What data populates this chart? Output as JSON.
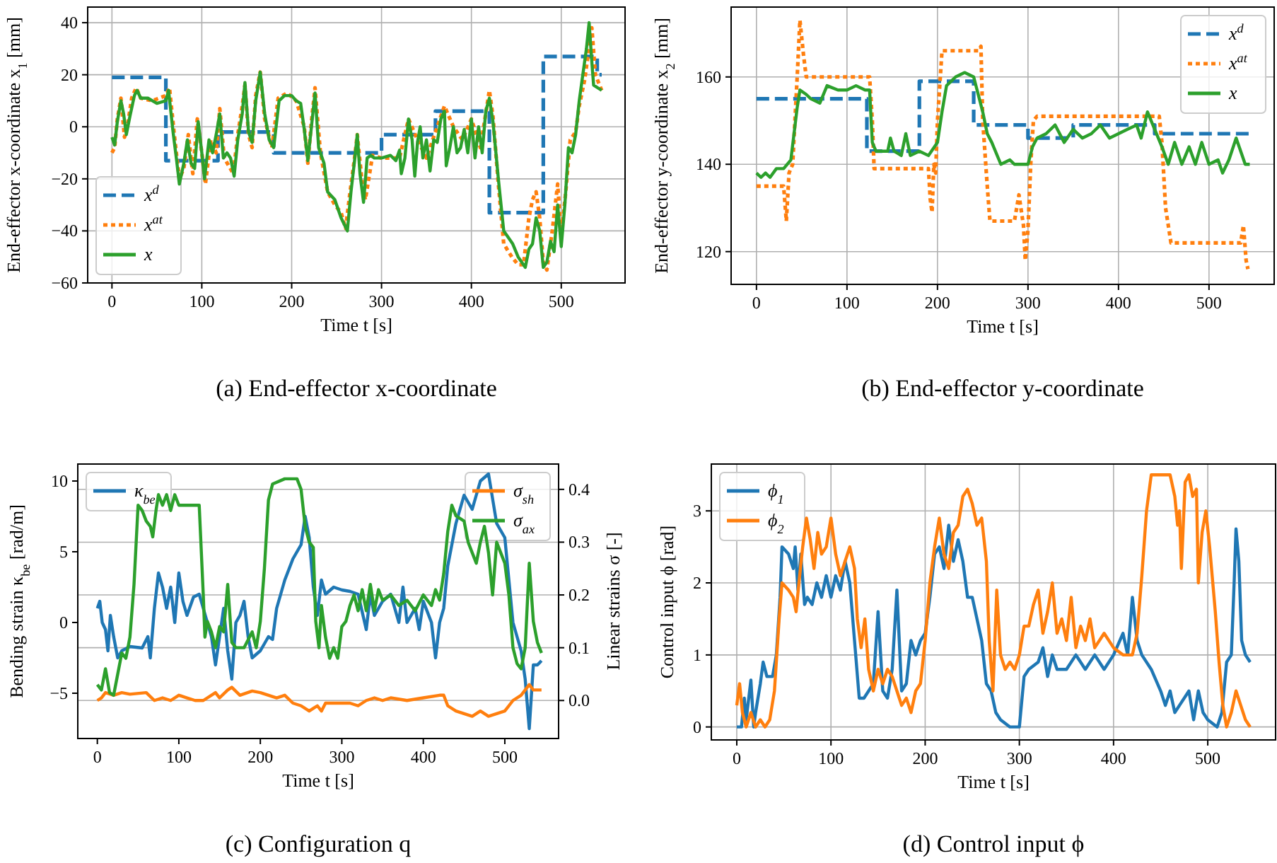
{
  "chart_data": [
    {
      "type": "line",
      "title": "(a)  End-effector x-coordinate",
      "xlabel": "Time t [s]",
      "ylabel": "End-effector x-coordinate x$_{1}$ [mm]",
      "xlim": [
        -27,
        571
      ],
      "ylim": [
        -60,
        46
      ],
      "xticks": [
        0,
        100,
        200,
        300,
        400,
        500
      ],
      "yticks": [
        {
          "value": -60,
          "label": "−60"
        },
        {
          "value": -40,
          "label": "−40"
        },
        {
          "value": -20,
          "label": "−20"
        },
        0,
        20,
        40
      ],
      "grid": true,
      "legend": "bottom left",
      "series": [
        {
          "name": "x$^{d}$",
          "type": "step",
          "line_style": "dashed",
          "color": "#1f77b4",
          "x": [
            0,
            60,
            118,
            180,
            300,
            360,
            420,
            480,
            540,
            545
          ],
          "values": [
            19,
            -13,
            -2,
            -10,
            -3,
            6,
            -33,
            27,
            20,
            20
          ]
        },
        {
          "name": "x$^{at}$",
          "line_style": "dotted",
          "color": "#ff7f0e",
          "x": [
            0,
            3,
            6,
            10,
            14,
            18,
            22,
            27,
            32,
            45,
            60,
            64,
            70,
            75,
            80,
            85,
            90,
            95,
            100,
            104,
            110,
            116,
            120,
            125,
            135,
            140,
            145,
            148,
            152,
            156,
            160,
            165,
            170,
            178,
            185,
            195,
            205,
            214,
            218,
            222,
            226,
            232,
            240,
            248,
            255,
            260,
            265,
            270,
            273,
            278,
            282,
            290,
            300,
            320,
            330,
            340,
            350,
            360,
            370,
            380,
            390,
            400,
            410,
            420,
            424,
            430,
            436,
            445,
            452,
            458,
            464,
            468,
            472,
            476,
            480,
            484,
            490,
            496,
            500,
            505,
            510,
            516,
            520,
            526,
            530,
            534,
            538,
            545
          ],
          "values": [
            -10,
            -8,
            3,
            11,
            -4,
            2,
            11,
            15,
            11,
            10,
            12,
            15,
            -5,
            -20,
            -16,
            -3,
            -18,
            3,
            -10,
            -22,
            -5,
            -10,
            7,
            -12,
            -18,
            -3,
            8,
            16,
            -3,
            -8,
            12,
            21,
            3,
            -8,
            11,
            13,
            10,
            0,
            -14,
            2,
            15,
            -10,
            -25,
            -30,
            -33,
            -39,
            -25,
            -12,
            -3,
            -20,
            -28,
            -11,
            -12,
            -12,
            3,
            -5,
            -12,
            -2,
            8,
            0,
            -5,
            3,
            -8,
            14,
            4,
            -22,
            -45,
            -50,
            -53,
            -53,
            -35,
            -28,
            -25,
            -35,
            -52,
            -55,
            -40,
            -22,
            -42,
            -25,
            -5,
            -2,
            8,
            18,
            28,
            38,
            20,
            14
          ]
        },
        {
          "name": "x",
          "line_style": "solid",
          "color": "#2ca02c",
          "x": [
            0,
            3,
            6,
            10,
            13,
            16,
            20,
            25,
            28,
            32,
            40,
            50,
            60,
            63,
            68,
            72,
            75,
            80,
            84,
            88,
            92,
            96,
            100,
            103,
            108,
            112,
            116,
            120,
            124,
            128,
            132,
            136,
            140,
            145,
            148,
            152,
            156,
            160,
            165,
            170,
            175,
            180,
            186,
            192,
            200,
            205,
            210,
            214,
            218,
            222,
            226,
            230,
            236,
            240,
            248,
            255,
            262,
            266,
            270,
            273,
            276,
            280,
            284,
            288,
            292,
            300,
            310,
            316,
            320,
            322,
            326,
            330,
            334,
            337,
            340,
            343,
            346,
            350,
            354,
            358,
            362,
            366,
            370,
            372,
            376,
            380,
            384,
            388,
            392,
            396,
            400,
            404,
            408,
            412,
            416,
            420,
            424,
            430,
            436,
            440,
            446,
            452,
            460,
            464,
            468,
            472,
            476,
            480,
            484,
            488,
            492,
            496,
            500,
            504,
            508,
            512,
            516,
            520,
            524,
            528,
            531,
            534,
            536,
            545
          ],
          "values": [
            -4,
            -7,
            2,
            10,
            5,
            -3,
            4,
            12,
            14,
            11,
            11,
            9,
            10,
            14,
            -2,
            -13,
            -22,
            -14,
            -5,
            -14,
            -16,
            2,
            -10,
            -20,
            -5,
            -10,
            -3,
            5,
            -12,
            -10,
            -12,
            -19,
            -5,
            5,
            17,
            -2,
            -6,
            10,
            21,
            5,
            -5,
            -8,
            10,
            12,
            12,
            10,
            9,
            -1,
            -13,
            0,
            13,
            -8,
            -14,
            -25,
            -28,
            -35,
            -40,
            -25,
            -13,
            -3,
            -18,
            -29,
            -12,
            -11,
            -12,
            -12,
            -11,
            -13,
            -9,
            -18,
            -12,
            3,
            -5,
            -19,
            -6,
            0,
            -12,
            -5,
            -17,
            -5,
            -6,
            3,
            6,
            -15,
            -8,
            0,
            -10,
            -8,
            -1,
            -10,
            3,
            -12,
            0,
            -10,
            6,
            11,
            2,
            -20,
            -40,
            -42,
            -45,
            -50,
            -54,
            -47,
            -45,
            -35,
            -40,
            -54,
            -52,
            -44,
            -48,
            -30,
            -46,
            -30,
            -8,
            -10,
            -3,
            10,
            20,
            30,
            40,
            25,
            16,
            14
          ]
        }
      ]
    },
    {
      "type": "line",
      "title": "(b)  End-effector y-coordinate",
      "xlabel": "Time t [s]",
      "ylabel": "End-effector y-coordinate x$_{2}$ [mm]",
      "xlim": [
        -28,
        572
      ],
      "ylim": [
        112.5,
        176
      ],
      "xticks": [
        0,
        100,
        200,
        300,
        400,
        500
      ],
      "yticks": [
        120,
        140,
        160
      ],
      "grid": true,
      "legend": "top right",
      "series": [
        {
          "name": "x$^{d}$",
          "type": "step",
          "line_style": "dashed",
          "color": "#1f77b4",
          "x": [
            0,
            122,
            180,
            240,
            300,
            350,
            440,
            545
          ],
          "values": [
            155,
            143,
            159,
            149,
            146,
            149,
            147,
            147
          ]
        },
        {
          "name": "x$^{at}$",
          "line_style": "dotted",
          "color": "#ff7f0e",
          "x": [
            0,
            30,
            33,
            36,
            40,
            45,
            48,
            52,
            55,
            125,
            128,
            130,
            190,
            192,
            194,
            196,
            198,
            200,
            205,
            245,
            248,
            250,
            255,
            258,
            285,
            290,
            295,
            297,
            300,
            303,
            306,
            310,
            445,
            448,
            452,
            458,
            535,
            538,
            541,
            543
          ],
          "values": [
            135,
            135,
            127,
            138,
            140,
            160,
            173,
            165,
            160,
            160,
            150,
            139,
            139,
            132,
            129,
            140,
            138,
            150,
            166,
            166,
            167,
            150,
            135,
            127,
            127,
            133,
            126,
            118,
            125,
            140,
            150,
            151,
            151,
            145,
            130,
            122,
            122,
            126,
            118,
            116
          ]
        },
        {
          "name": "x",
          "line_style": "solid",
          "color": "#2ca02c",
          "x": [
            0,
            5,
            10,
            15,
            22,
            30,
            38,
            45,
            48,
            55,
            60,
            70,
            78,
            90,
            100,
            110,
            120,
            125,
            128,
            132,
            140,
            145,
            148,
            152,
            160,
            165,
            170,
            180,
            190,
            200,
            205,
            210,
            220,
            230,
            240,
            245,
            250,
            255,
            260,
            270,
            280,
            285,
            295,
            300,
            305,
            310,
            320,
            330,
            340,
            350,
            360,
            370,
            380,
            390,
            400,
            410,
            420,
            425,
            432,
            440,
            448,
            455,
            462,
            470,
            478,
            485,
            492,
            500,
            510,
            515,
            522,
            530,
            540,
            545
          ],
          "values": [
            138,
            137,
            138,
            137,
            139,
            139,
            141,
            153,
            157,
            156,
            155,
            154,
            158,
            157,
            157,
            158,
            157,
            157,
            145,
            143,
            143,
            143,
            146,
            143,
            142,
            147,
            142,
            143,
            142,
            145,
            152,
            158,
            160,
            161,
            160,
            156,
            152,
            147,
            145,
            140,
            141,
            140,
            140,
            140,
            144,
            146,
            147,
            149,
            145,
            148,
            146,
            147,
            149,
            146,
            147,
            148,
            149,
            146,
            152,
            148,
            144,
            140,
            145,
            140,
            144,
            140,
            145,
            140,
            141,
            138,
            141,
            146,
            140,
            140
          ]
        }
      ]
    },
    {
      "type": "line",
      "title": "(c)  Configuration q",
      "xlabel": "Time t [s]",
      "ylabel": "Bending strain κ$_{be}$ [rad/m]",
      "y2label": "Linear strains σ [-]",
      "xlim": [
        -24,
        566
      ],
      "ylim": [
        -8.2,
        11.2
      ],
      "y2lim": [
        -0.072,
        0.448
      ],
      "xticks": [
        0,
        100,
        200,
        300,
        400,
        500
      ],
      "yticks": [
        {
          "value": -5,
          "label": "−5"
        },
        0,
        5,
        10
      ],
      "y2ticks": [
        {
          "value": 0,
          "label": "0.0"
        },
        0.1,
        0.2,
        0.3,
        0.4
      ],
      "grid": "y",
      "legend": "top",
      "series": [
        {
          "name": "κ$_{be}$",
          "line_style": "solid",
          "color": "#1f77b4",
          "x": [
            0,
            3,
            6,
            10,
            13,
            16,
            20,
            25,
            30,
            40,
            55,
            62,
            65,
            70,
            75,
            80,
            85,
            90,
            95,
            100,
            105,
            110,
            118,
            125,
            130,
            135,
            140,
            145,
            150,
            155,
            160,
            165,
            170,
            175,
            180,
            185,
            190,
            200,
            210,
            215,
            220,
            230,
            240,
            250,
            255,
            260,
            265,
            270,
            275,
            280,
            290,
            300,
            310,
            320,
            330,
            335,
            340,
            350,
            360,
            370,
            375,
            380,
            390,
            395,
            400,
            410,
            415,
            420,
            425,
            430,
            440,
            450,
            460,
            470,
            480,
            490,
            500,
            505,
            510,
            520,
            525,
            530,
            535,
            540,
            545
          ],
          "values": [
            1,
            1.5,
            0,
            -0.5,
            -2,
            0.5,
            -1,
            -2.5,
            -2,
            -1.7,
            -1.8,
            -1,
            -2.5,
            1,
            3.5,
            2.5,
            1,
            2.5,
            0,
            3.5,
            1.5,
            0.5,
            1.8,
            2,
            1,
            0,
            -1,
            -3,
            -1,
            1,
            -2,
            -4,
            0,
            0.5,
            1.5,
            -1,
            -2.5,
            -2,
            -1,
            -1.2,
            1,
            3,
            4.5,
            5.5,
            7.5,
            6,
            2.5,
            0.5,
            3,
            2,
            2.5,
            2.3,
            2.2,
            2,
            -0.5,
            2,
            0.5,
            1.5,
            2,
            0,
            2.5,
            0,
            1,
            -0.5,
            1.5,
            0,
            -2.5,
            0,
            1,
            4,
            7,
            9,
            8,
            10,
            10.5,
            7,
            6,
            3,
            0,
            -2,
            -4,
            -7.5,
            -3,
            -3,
            -2.7
          ]
        },
        {
          "name": "σ$_{sh}$",
          "axis": "y2",
          "line_style": "solid",
          "color": "#ff7f0e",
          "x": [
            0,
            5,
            10,
            20,
            30,
            40,
            60,
            70,
            80,
            90,
            100,
            110,
            120,
            130,
            145,
            150,
            160,
            165,
            175,
            190,
            200,
            210,
            220,
            230,
            240,
            250,
            260,
            265,
            270,
            275,
            280,
            290,
            300,
            310,
            320,
            330,
            340,
            350,
            360,
            380,
            400,
            420,
            425,
            430,
            440,
            450,
            460,
            470,
            480,
            490,
            500,
            505,
            510,
            520,
            530,
            535,
            540,
            545
          ],
          "values": [
            0,
            0.005,
            0.015,
            0.01,
            0.015,
            0.012,
            0.015,
            0,
            0.005,
            0,
            0.01,
            0.005,
            0,
            0,
            0.015,
            0.005,
            0.02,
            0.025,
            0.01,
            0.018,
            0.015,
            0.01,
            0.005,
            0.01,
            -0.005,
            -0.01,
            -0.02,
            -0.015,
            -0.01,
            -0.02,
            -0.005,
            -0.005,
            -0.005,
            -0.005,
            -0.01,
            0,
            0.005,
            0,
            0.005,
            0,
            0.005,
            0.01,
            0.01,
            -0.01,
            -0.02,
            -0.025,
            -0.03,
            -0.02,
            -0.03,
            -0.025,
            -0.02,
            -0.01,
            0,
            0.01,
            0.03,
            0.02,
            0.02,
            0.02
          ]
        },
        {
          "name": "σ$_{ax}$",
          "axis": "y2",
          "line_style": "solid",
          "color": "#2ca02c",
          "x": [
            0,
            5,
            10,
            15,
            20,
            25,
            30,
            35,
            40,
            45,
            50,
            55,
            60,
            65,
            68,
            72,
            75,
            80,
            85,
            90,
            95,
            100,
            105,
            115,
            125,
            130,
            132,
            135,
            140,
            145,
            150,
            155,
            160,
            165,
            170,
            180,
            190,
            195,
            200,
            205,
            210,
            215,
            230,
            245,
            250,
            255,
            260,
            265,
            268,
            272,
            275,
            280,
            285,
            290,
            295,
            300,
            305,
            310,
            315,
            320,
            325,
            330,
            335,
            340,
            345,
            350,
            360,
            370,
            380,
            390,
            400,
            410,
            415,
            420,
            425,
            430,
            435,
            440,
            450,
            455,
            460,
            465,
            470,
            475,
            480,
            485,
            490,
            495,
            500,
            505,
            510,
            515,
            520,
            525,
            530,
            535,
            540,
            545
          ],
          "values": [
            0.03,
            0.02,
            0.06,
            0.015,
            0.01,
            0.05,
            0.09,
            0.08,
            0.12,
            0.22,
            0.37,
            0.36,
            0.34,
            0.33,
            0.31,
            0.36,
            0.39,
            0.37,
            0.39,
            0.36,
            0.39,
            0.37,
            0.37,
            0.37,
            0.37,
            0.2,
            0.12,
            0.15,
            0.13,
            0.1,
            0.14,
            0.13,
            0.22,
            0.11,
            0.1,
            0.1,
            0.13,
            0.1,
            0.15,
            0.25,
            0.38,
            0.41,
            0.42,
            0.42,
            0.4,
            0.33,
            0.3,
            0.29,
            0.15,
            0.1,
            0.18,
            0.12,
            0.08,
            0.1,
            0.08,
            0.14,
            0.15,
            0.18,
            0.2,
            0.17,
            0.21,
            0.17,
            0.22,
            0.17,
            0.21,
            0.19,
            0.2,
            0.18,
            0.19,
            0.17,
            0.2,
            0.18,
            0.21,
            0.19,
            0.24,
            0.32,
            0.37,
            0.35,
            0.34,
            0.3,
            0.28,
            0.26,
            0.3,
            0.33,
            0.28,
            0.2,
            0.3,
            0.28,
            0.26,
            0.2,
            0.1,
            0.07,
            0.06,
            0.1,
            0.26,
            0.15,
            0.11,
            0.09
          ]
        }
      ]
    },
    {
      "type": "line",
      "title": "(d)  Control input ϕ",
      "xlabel": "Time t [s]",
      "ylabel": "Control input ϕ [rad]",
      "xlim": [
        -27,
        572
      ],
      "ylim": [
        -0.18,
        3.65
      ],
      "xticks": [
        0,
        100,
        200,
        300,
        400,
        500
      ],
      "yticks": [
        0,
        1,
        2,
        3
      ],
      "grid": true,
      "legend": "top left",
      "series": [
        {
          "name": "ϕ$_{1}$",
          "line_style": "solid",
          "color": "#1f77b4",
          "x": [
            0,
            5,
            8,
            10,
            15,
            18,
            20,
            25,
            28,
            32,
            38,
            42,
            46,
            48,
            55,
            60,
            62,
            65,
            68,
            72,
            75,
            80,
            85,
            90,
            95,
            100,
            105,
            110,
            115,
            120,
            125,
            130,
            135,
            140,
            145,
            150,
            155,
            160,
            165,
            170,
            175,
            180,
            185,
            190,
            195,
            200,
            205,
            210,
            215,
            220,
            225,
            230,
            235,
            240,
            245,
            250,
            255,
            260,
            265,
            270,
            275,
            280,
            290,
            300,
            305,
            310,
            320,
            325,
            330,
            335,
            340,
            350,
            360,
            370,
            380,
            390,
            400,
            410,
            415,
            420,
            425,
            430,
            440,
            450,
            455,
            460,
            465,
            470,
            480,
            485,
            490,
            495,
            500,
            510,
            515,
            520,
            525,
            528,
            530,
            533,
            536,
            540,
            545
          ],
          "values": [
            0,
            0,
            0.4,
            0.1,
            0.65,
            0,
            0.2,
            0.6,
            0.9,
            0.7,
            0.7,
            1,
            1.8,
            2.5,
            2.4,
            2.2,
            2.5,
            1.9,
            2.4,
            1.7,
            1.8,
            1.7,
            2,
            1.8,
            2.1,
            1.8,
            2.1,
            1.9,
            2.3,
            2,
            1.2,
            0.4,
            0.4,
            0.5,
            0.6,
            1.6,
            0.5,
            0.4,
            0.8,
            1.9,
            0.5,
            0.6,
            1.2,
            1,
            1.2,
            1.3,
            1.8,
            2.4,
            2.5,
            2.2,
            2.8,
            2.3,
            2.6,
            2.3,
            1.8,
            1.8,
            1.5,
            1.2,
            0.6,
            0.5,
            0.2,
            0.1,
            0,
            0,
            0.7,
            0.8,
            0.9,
            1.1,
            0.7,
            1,
            0.8,
            0.8,
            1,
            0.8,
            1,
            0.8,
            1,
            1.3,
            1,
            1.8,
            1.2,
            1,
            0.8,
            0.5,
            0.3,
            0.5,
            0.2,
            0.3,
            0.5,
            0.1,
            0.5,
            0.2,
            0.1,
            0,
            0.2,
            0.9,
            1,
            2,
            2.75,
            2.3,
            1.2,
            1,
            0.9
          ]
        },
        {
          "name": "ϕ$_{2}$",
          "line_style": "solid",
          "color": "#ff7f0e",
          "x": [
            0,
            3,
            6,
            10,
            15,
            20,
            25,
            30,
            35,
            40,
            45,
            48,
            55,
            60,
            63,
            66,
            70,
            74,
            78,
            82,
            86,
            90,
            95,
            100,
            105,
            110,
            115,
            120,
            125,
            128,
            132,
            136,
            140,
            145,
            150,
            155,
            160,
            165,
            170,
            175,
            180,
            185,
            190,
            195,
            200,
            205,
            210,
            215,
            220,
            225,
            230,
            235,
            240,
            245,
            250,
            255,
            260,
            265,
            268,
            272,
            276,
            280,
            285,
            290,
            295,
            300,
            305,
            310,
            315,
            320,
            325,
            330,
            335,
            340,
            345,
            350,
            355,
            360,
            365,
            370,
            375,
            380,
            390,
            400,
            410,
            420,
            425,
            430,
            435,
            440,
            460,
            465,
            468,
            470,
            472,
            476,
            480,
            484,
            488,
            490,
            494,
            498,
            502,
            508,
            512,
            516,
            520,
            525,
            530,
            535,
            540,
            545
          ],
          "values": [
            0.3,
            0.6,
            0.2,
            0,
            0.2,
            0,
            0.1,
            0,
            0.1,
            0.5,
            1.5,
            2,
            1.9,
            1.8,
            1.6,
            2,
            2.5,
            2.9,
            2.6,
            2.2,
            2.7,
            2.4,
            2.5,
            2.9,
            2.4,
            2.1,
            2.3,
            2.5,
            2.2,
            1.5,
            1.1,
            1.5,
            0.8,
            0.5,
            0.8,
            0.6,
            0.8,
            0.7,
            0.5,
            0.3,
            0.4,
            0.2,
            0.5,
            0.6,
            1.2,
            2,
            2.5,
            2.9,
            2.4,
            2.2,
            2.7,
            2.8,
            3.2,
            3.3,
            3.1,
            2.8,
            2.9,
            2.3,
            1.2,
            0.5,
            1.9,
            1,
            0.8,
            0.9,
            0.8,
            1,
            1.4,
            1.4,
            1.7,
            1.9,
            1.3,
            1.6,
            2,
            1.3,
            1.5,
            1.2,
            1.8,
            1.1,
            1.4,
            1.2,
            1.5,
            1.1,
            1.3,
            1.1,
            1,
            1,
            1.3,
            2.1,
            3,
            3.5,
            3.5,
            3.2,
            2.8,
            3,
            2.2,
            3.4,
            3.5,
            3.2,
            3.3,
            2,
            2.7,
            3,
            2.5,
            1.6,
            0.9,
            0.3,
            0,
            0.2,
            0.5,
            0.3,
            0.1,
            0
          ]
        }
      ]
    }
  ]
}
